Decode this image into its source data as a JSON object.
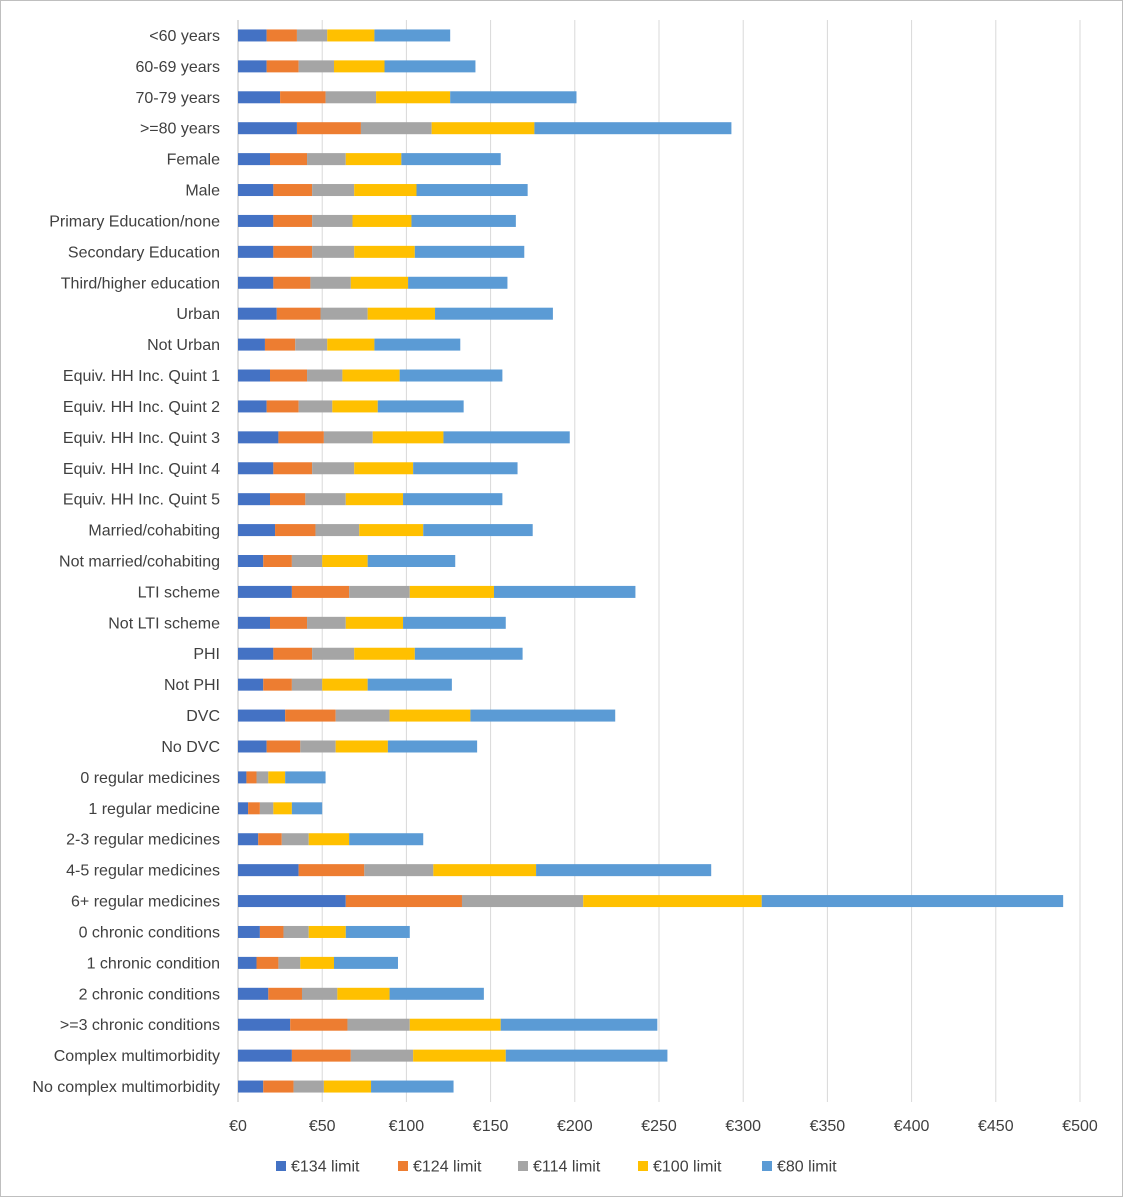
{
  "chart_data": {
    "type": "bar",
    "orientation": "horizontal",
    "stacked": true,
    "title": "",
    "xlabel": "",
    "ylabel": "",
    "xlim": [
      0,
      500
    ],
    "tick_labels": [
      "€0",
      "€50",
      "€100",
      "€150",
      "€200",
      "€250",
      "€300",
      "€350",
      "€400",
      "€450",
      "€500"
    ],
    "grid": true,
    "legend_position": "bottom",
    "categories": [
      "<60 years",
      "60-69 years",
      "70-79 years",
      ">=80 years",
      "Female",
      "Male",
      "Primary Education/none",
      "Secondary Education",
      "Third/higher education",
      "Urban",
      "Not Urban",
      "Equiv. HH Inc. Quint 1",
      "Equiv. HH Inc. Quint 2",
      "Equiv. HH Inc. Quint 3",
      "Equiv. HH Inc. Quint 4",
      "Equiv. HH Inc. Quint 5",
      "Married/cohabiting",
      "Not married/cohabiting",
      "LTI scheme",
      "Not LTI scheme",
      "PHI",
      "Not PHI",
      "DVC",
      "No DVC",
      "0 regular medicines",
      "1 regular medicine",
      "2-3 regular medicines",
      "4-5 regular medicines",
      "6+ regular medicines",
      "0 chronic conditions",
      "1 chronic condition",
      "2 chronic conditions",
      ">=3 chronic conditions",
      "Complex multimorbidity",
      "No complex multimorbidity"
    ],
    "series": [
      {
        "name": "€134 limit",
        "color": "#4472c4",
        "values": [
          17,
          17,
          25,
          35,
          19,
          21,
          21,
          21,
          21,
          23,
          16,
          19,
          17,
          24,
          21,
          19,
          22,
          15,
          32,
          19,
          21,
          15,
          28,
          17,
          5,
          6,
          12,
          36,
          64,
          13,
          11,
          18,
          31,
          32,
          15
        ]
      },
      {
        "name": "€124 limit",
        "color": "#ed7d31",
        "values": [
          18,
          19,
          27,
          38,
          22,
          23,
          23,
          23,
          22,
          26,
          18,
          22,
          19,
          27,
          23,
          21,
          24,
          17,
          34,
          22,
          23,
          17,
          30,
          20,
          6,
          7,
          14,
          39,
          69,
          14,
          13,
          20,
          34,
          35,
          18
        ]
      },
      {
        "name": "€114 limit",
        "color": "#a5a5a5",
        "values": [
          18,
          21,
          30,
          42,
          23,
          25,
          24,
          25,
          24,
          28,
          19,
          21,
          20,
          29,
          25,
          24,
          26,
          18,
          36,
          23,
          25,
          18,
          32,
          21,
          7,
          8,
          16,
          41,
          72,
          15,
          13,
          21,
          37,
          37,
          18
        ]
      },
      {
        "name": "€100 limit",
        "color": "#ffc000",
        "values": [
          28,
          30,
          44,
          61,
          33,
          37,
          35,
          36,
          34,
          40,
          28,
          34,
          27,
          42,
          35,
          34,
          38,
          27,
          50,
          34,
          36,
          27,
          48,
          31,
          10,
          11,
          24,
          61,
          106,
          22,
          20,
          31,
          54,
          55,
          28
        ]
      },
      {
        "name": "€80 limit",
        "color": "#5b9bd5",
        "values": [
          45,
          54,
          75,
          117,
          59,
          66,
          62,
          65,
          59,
          70,
          51,
          61,
          51,
          75,
          62,
          59,
          65,
          52,
          84,
          61,
          64,
          50,
          86,
          53,
          24,
          18,
          44,
          104,
          179,
          38,
          38,
          56,
          93,
          96,
          49
        ]
      }
    ]
  }
}
